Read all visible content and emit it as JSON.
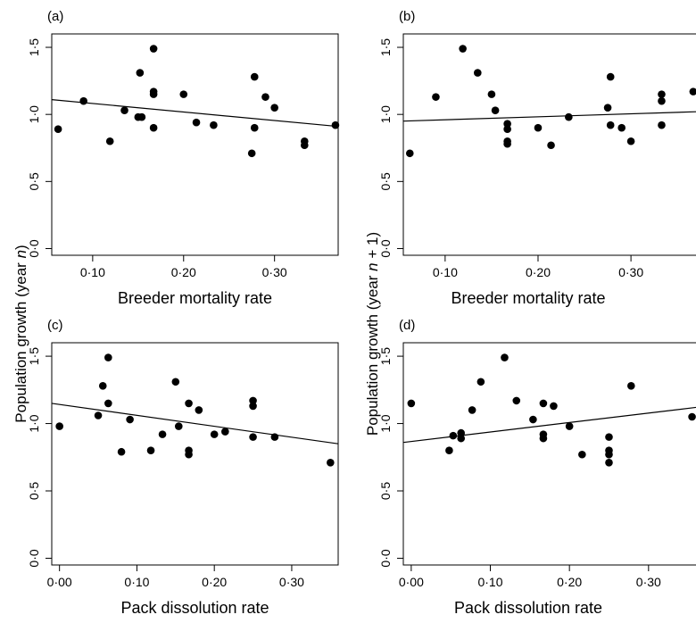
{
  "figure": {
    "ylabel_left": {
      "prefix": "Population growth (year ",
      "italic": "n",
      "suffix": ")"
    },
    "ylabel_right": {
      "prefix": "Population growth (year ",
      "italic": "n",
      "suffix": " + 1)"
    }
  },
  "chart_data": [
    {
      "type": "scatter",
      "panel": "(a)",
      "xlabel": "Breeder mortality rate",
      "ylabel": "Population growth (year n)",
      "xlim": [
        0.055,
        0.37
      ],
      "ylim": [
        -0.05,
        1.6
      ],
      "xticks": [
        0.1,
        0.2,
        0.3
      ],
      "xtick_labels": [
        "0·10",
        "0·20",
        "0·30"
      ],
      "yticks": [
        0.0,
        0.5,
        1.0,
        1.5
      ],
      "ytick_labels": [
        "0·0",
        "0·5",
        "1·0",
        "1·5"
      ],
      "points": [
        [
          0.062,
          0.89
        ],
        [
          0.09,
          1.1
        ],
        [
          0.119,
          0.8
        ],
        [
          0.135,
          1.03
        ],
        [
          0.15,
          0.98
        ],
        [
          0.154,
          0.98
        ],
        [
          0.152,
          1.31
        ],
        [
          0.167,
          1.49
        ],
        [
          0.167,
          1.17
        ],
        [
          0.167,
          1.15
        ],
        [
          0.167,
          0.9
        ],
        [
          0.2,
          1.15
        ],
        [
          0.214,
          0.94
        ],
        [
          0.233,
          0.92
        ],
        [
          0.278,
          1.28
        ],
        [
          0.275,
          0.71
        ],
        [
          0.278,
          0.9
        ],
        [
          0.29,
          1.13
        ],
        [
          0.3,
          1.05
        ],
        [
          0.333,
          0.8
        ],
        [
          0.333,
          0.77
        ],
        [
          0.367,
          0.92
        ]
      ],
      "fit_line": {
        "x": [
          0.055,
          0.37
        ],
        "y": [
          1.11,
          0.91
        ]
      }
    },
    {
      "type": "scatter",
      "panel": "(b)",
      "xlabel": "Breeder mortality rate",
      "ylabel": "Population growth (year n + 1)",
      "xlim": [
        0.055,
        0.37
      ],
      "ylim": [
        -0.05,
        1.6
      ],
      "xticks": [
        0.1,
        0.2,
        0.3
      ],
      "xtick_labels": [
        "0·10",
        "0·20",
        "0·30"
      ],
      "yticks": [
        0.0,
        0.5,
        1.0,
        1.5
      ],
      "ytick_labels": [
        "0·0",
        "0·5",
        "1·0",
        "1·5"
      ],
      "points": [
        [
          0.062,
          0.71
        ],
        [
          0.09,
          1.13
        ],
        [
          0.119,
          1.49
        ],
        [
          0.135,
          1.31
        ],
        [
          0.15,
          1.15
        ],
        [
          0.154,
          1.03
        ],
        [
          0.167,
          0.93
        ],
        [
          0.167,
          0.89
        ],
        [
          0.167,
          0.8
        ],
        [
          0.167,
          0.78
        ],
        [
          0.2,
          0.9
        ],
        [
          0.214,
          0.77
        ],
        [
          0.233,
          0.98
        ],
        [
          0.275,
          1.05
        ],
        [
          0.278,
          1.28
        ],
        [
          0.278,
          0.92
        ],
        [
          0.29,
          0.9
        ],
        [
          0.3,
          0.8
        ],
        [
          0.333,
          1.15
        ],
        [
          0.333,
          1.1
        ],
        [
          0.333,
          0.92
        ],
        [
          0.367,
          1.17
        ]
      ],
      "fit_line": {
        "x": [
          0.055,
          0.37
        ],
        "y": [
          0.95,
          1.02
        ]
      }
    },
    {
      "type": "scatter",
      "panel": "(c)",
      "xlabel": "Pack dissolution rate",
      "ylabel": "Population growth (year n)",
      "xlim": [
        -0.01,
        0.36
      ],
      "ylim": [
        -0.05,
        1.6
      ],
      "xticks": [
        0.0,
        0.1,
        0.2,
        0.3
      ],
      "xtick_labels": [
        "0·00",
        "0·10",
        "0·20",
        "0·30"
      ],
      "yticks": [
        0.0,
        0.5,
        1.0,
        1.5
      ],
      "ytick_labels": [
        "0·0",
        "0·5",
        "1·0",
        "1·5"
      ],
      "points": [
        [
          0.0,
          0.98
        ],
        [
          0.05,
          1.06
        ],
        [
          0.056,
          1.28
        ],
        [
          0.063,
          1.49
        ],
        [
          0.063,
          1.15
        ],
        [
          0.08,
          0.79
        ],
        [
          0.091,
          1.03
        ],
        [
          0.118,
          0.8
        ],
        [
          0.133,
          0.92
        ],
        [
          0.15,
          1.31
        ],
        [
          0.154,
          0.98
        ],
        [
          0.167,
          1.15
        ],
        [
          0.167,
          0.8
        ],
        [
          0.167,
          0.77
        ],
        [
          0.18,
          1.1
        ],
        [
          0.2,
          0.92
        ],
        [
          0.214,
          0.94
        ],
        [
          0.25,
          1.17
        ],
        [
          0.25,
          1.13
        ],
        [
          0.25,
          0.9
        ],
        [
          0.278,
          0.9
        ],
        [
          0.35,
          0.71
        ]
      ],
      "fit_line": {
        "x": [
          -0.01,
          0.36
        ],
        "y": [
          1.15,
          0.85
        ]
      }
    },
    {
      "type": "scatter",
      "panel": "(d)",
      "xlabel": "Pack dissolution rate",
      "ylabel": "Population growth (year n + 1)",
      "xlim": [
        -0.01,
        0.36
      ],
      "ylim": [
        -0.05,
        1.6
      ],
      "xticks": [
        0.0,
        0.1,
        0.2,
        0.3
      ],
      "xtick_labels": [
        "0·00",
        "0·10",
        "0·20",
        "0·30"
      ],
      "yticks": [
        0.0,
        0.5,
        1.0,
        1.5
      ],
      "ytick_labels": [
        "0·0",
        "0·5",
        "1·0",
        "1·5"
      ],
      "points": [
        [
          0.0,
          1.15
        ],
        [
          0.048,
          0.8
        ],
        [
          0.053,
          0.91
        ],
        [
          0.063,
          0.93
        ],
        [
          0.063,
          0.89
        ],
        [
          0.077,
          1.1
        ],
        [
          0.088,
          1.31
        ],
        [
          0.118,
          1.49
        ],
        [
          0.133,
          1.17
        ],
        [
          0.154,
          1.03
        ],
        [
          0.167,
          1.15
        ],
        [
          0.167,
          0.92
        ],
        [
          0.167,
          0.89
        ],
        [
          0.18,
          1.13
        ],
        [
          0.2,
          0.98
        ],
        [
          0.216,
          0.77
        ],
        [
          0.25,
          0.9
        ],
        [
          0.25,
          0.8
        ],
        [
          0.25,
          0.77
        ],
        [
          0.25,
          0.71
        ],
        [
          0.278,
          1.28
        ],
        [
          0.355,
          1.05
        ]
      ],
      "fit_line": {
        "x": [
          -0.01,
          0.36
        ],
        "y": [
          0.86,
          1.12
        ]
      }
    }
  ]
}
